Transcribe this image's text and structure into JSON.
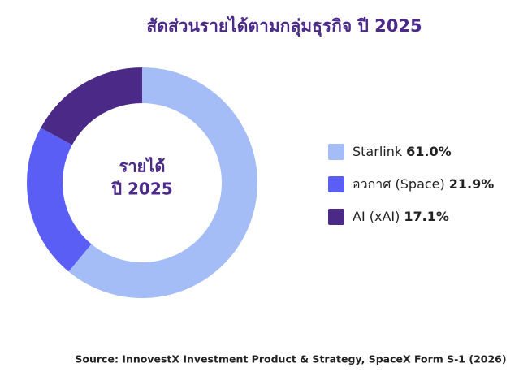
{
  "chart_data": {
    "type": "pie",
    "title": "สัดส่วนรายได้ตามกลุ่มธุรกิจ ปี 2025",
    "center_label": [
      "รายได้",
      "ปี 2025"
    ],
    "categories": [
      "Starlink",
      "อวกาศ (Space)",
      "AI (xAI)"
    ],
    "values": [
      61.0,
      21.9,
      17.1
    ],
    "value_labels": [
      "61.0%",
      "21.9%",
      "17.1%"
    ],
    "colors": [
      "#a5bdf7",
      "#5b5ef5",
      "#4a2a86"
    ],
    "legend": "right",
    "source": "Source: InnovestX Investment Product & Strategy, SpaceX Form S-1 (2026)"
  }
}
